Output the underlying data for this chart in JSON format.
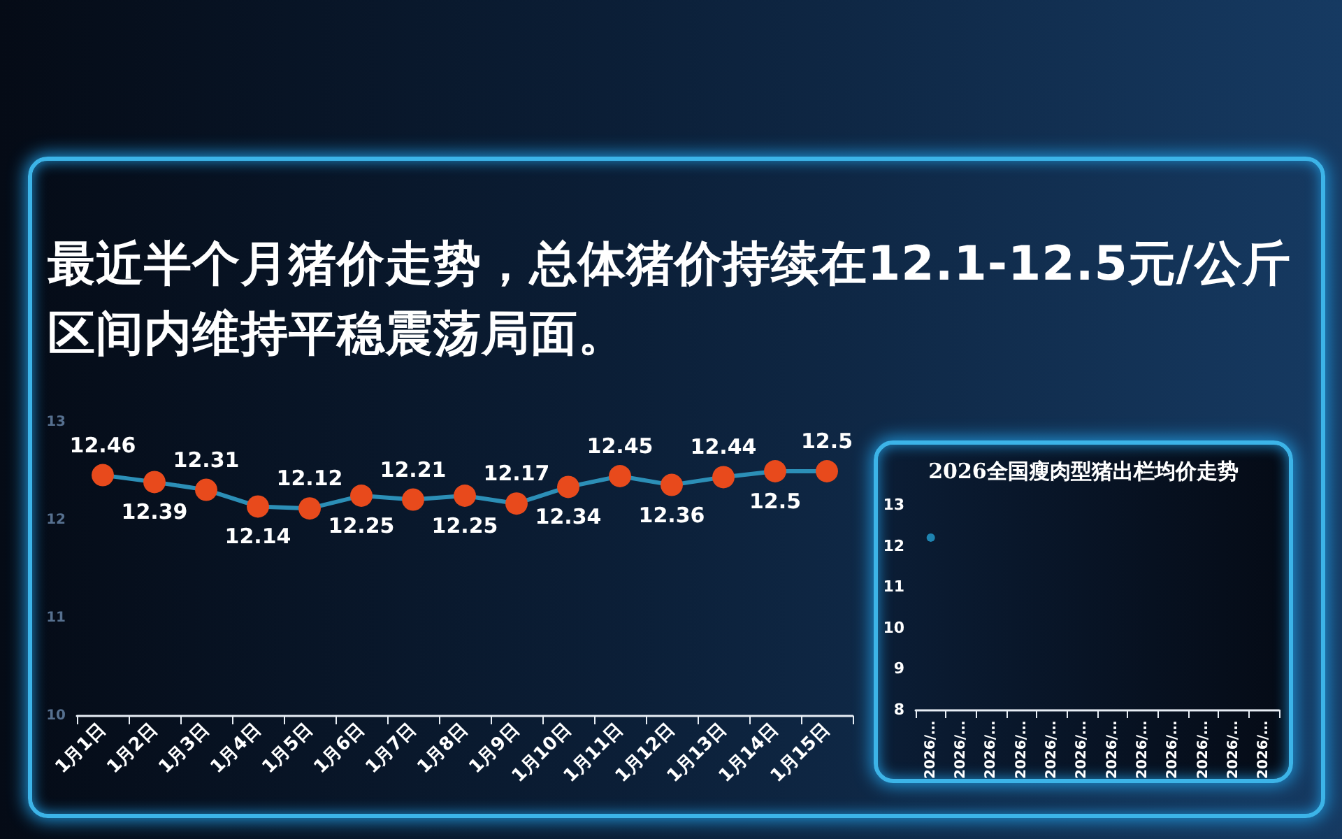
{
  "chart_data": [
    {
      "type": "line",
      "title": "最近半个月猪价走势，总体猪价持续在12.1-12.5元/公斤区间内维持平稳震荡局面。",
      "categories": [
        "1月1日",
        "1月2日",
        "1月3日",
        "1月4日",
        "1月5日",
        "1月6日",
        "1月7日",
        "1月8日",
        "1月9日",
        "1月10日",
        "1月11日",
        "1月12日",
        "1月13日",
        "1月14日",
        "1月15日"
      ],
      "series": [
        {
          "color": "#2c8fb7",
          "colors": [
            "#e84a1c",
            "#e84a1c",
            "#e84a1c",
            "#e84a1c",
            "#e84a1c",
            "#e84a1c",
            "#e84a1c",
            "#e84a1c",
            "#e84a1c",
            "#e84a1c",
            "#e84a1c",
            "#e84a1c",
            "#e84a1c",
            "#e84a1c",
            "#e84a1c"
          ],
          "values": [
            12.46,
            12.39,
            12.31,
            12.14,
            12.12,
            12.25,
            12.21,
            12.25,
            12.17,
            12.34,
            12.45,
            12.36,
            12.44,
            12.5,
            12.5
          ]
        }
      ],
      "ylim": [
        10,
        13
      ],
      "yticks": [
        10,
        11,
        12,
        13
      ],
      "data_labels": true,
      "marker": "circle"
    },
    {
      "type": "line",
      "title": "2026全国瘦肉型猪出栏均价走势",
      "categories": [
        "2026/…",
        "2026/…",
        "2026/…",
        "2026/…",
        "2026/…",
        "2026/…",
        "2026/…",
        "2026/…",
        "2026/…",
        "2026/…",
        "2026/…",
        "2026/…"
      ],
      "series": [
        {
          "color": "#1e83b0",
          "values": [
            12.2,
            null,
            null,
            null,
            null,
            null,
            null,
            null,
            null,
            null,
            null,
            null
          ]
        }
      ],
      "ylim": [
        8,
        13
      ],
      "yticks": [
        8,
        9,
        10,
        11,
        12,
        13
      ],
      "marker": "circle"
    }
  ]
}
